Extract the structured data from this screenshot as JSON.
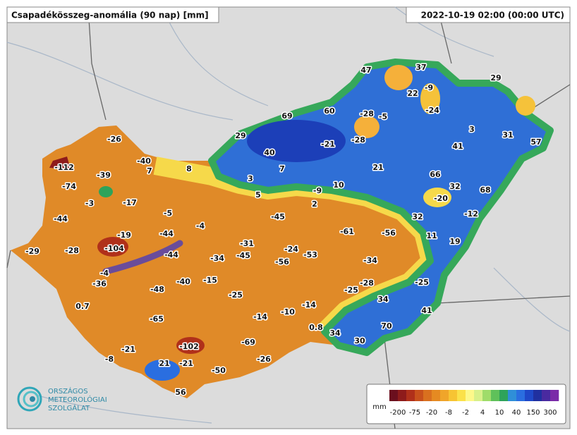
{
  "header": {
    "title": "Csapadékösszeg-anomália (90 nap) [mm]",
    "timestamp": "2022-10-19 02:00 (00:00 UTC)"
  },
  "stations": [
    47,
    37,
    29,
    -9,
    22,
    -24,
    69,
    60,
    -28,
    -5,
    3,
    31,
    57,
    -26,
    29,
    -21,
    -28,
    41,
    40,
    -40,
    7,
    8,
    7,
    21,
    66,
    -112,
    -39,
    3,
    10,
    -9,
    32,
    68,
    -74,
    -3,
    -17,
    5,
    2,
    -20,
    -44,
    -5,
    -4,
    -45,
    32,
    -12,
    -19,
    -44,
    -61,
    -56,
    11,
    -31,
    19,
    -29,
    -28,
    -104,
    -24,
    -44,
    -34,
    -45,
    -56,
    -53,
    -34,
    -4,
    -36,
    -15,
    -40,
    -48,
    -28,
    -25,
    -25,
    -25,
    34,
    0.7,
    -14,
    -10,
    -14,
    41,
    -65,
    0.8,
    70,
    34,
    30,
    -69,
    -21,
    -102,
    -8,
    21,
    -21,
    -26,
    -50,
    56
  ],
  "legend": {
    "unit": "mm",
    "ticks": [
      -200,
      -75,
      -20,
      -8,
      -2,
      4,
      10,
      40,
      150,
      300
    ],
    "colors": [
      "#6b0f1e",
      "#8e1b1b",
      "#b0301a",
      "#c8511c",
      "#d9701f",
      "#e58a22",
      "#f0a52a",
      "#f7c433",
      "#fbe14a",
      "#fdf88a",
      "#d8f08a",
      "#9fdc6a",
      "#5fc15a",
      "#2ea35a",
      "#2f8fd8",
      "#2a6ee0",
      "#1f48c8",
      "#2030a0",
      "#4a2aa0",
      "#7a2aa8"
    ]
  },
  "logo": {
    "lines": [
      "ORSZÁGOS",
      "METEOROLÓGIAI",
      "SZOLGÁLAT"
    ]
  }
}
